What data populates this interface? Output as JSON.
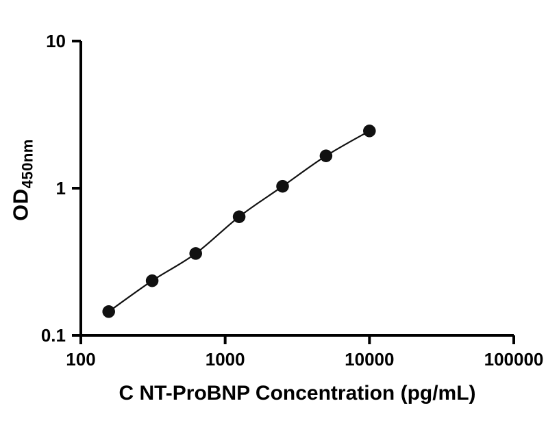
{
  "page": {
    "background": "#ffffff"
  },
  "chart_data": {
    "type": "scatter",
    "title": "",
    "xlabel": "C NT-ProBNP Concentration (pg/mL)",
    "ylabel_main": "OD",
    "ylabel_sub": "450nm",
    "x_scale": "log",
    "y_scale": "log",
    "xlim": [
      100,
      100000
    ],
    "ylim": [
      0.1,
      10
    ],
    "grid": false,
    "legend": "none",
    "axis_color": "#000000",
    "marker_color": "#111111",
    "line_color": "#111111",
    "x_ticks": [
      {
        "value": 100,
        "label": "100"
      },
      {
        "value": 1000,
        "label": "1000"
      },
      {
        "value": 10000,
        "label": "10000"
      },
      {
        "value": 100000,
        "label": "100000"
      }
    ],
    "y_ticks": [
      {
        "value": 0.1,
        "label": "0.1"
      },
      {
        "value": 1,
        "label": "1"
      },
      {
        "value": 10,
        "label": "10"
      }
    ],
    "series": [
      {
        "x": [
          156,
          312,
          625,
          1250,
          2500,
          5000,
          10000
        ],
        "y": [
          0.145,
          0.235,
          0.36,
          0.64,
          1.03,
          1.66,
          2.45
        ]
      }
    ]
  }
}
